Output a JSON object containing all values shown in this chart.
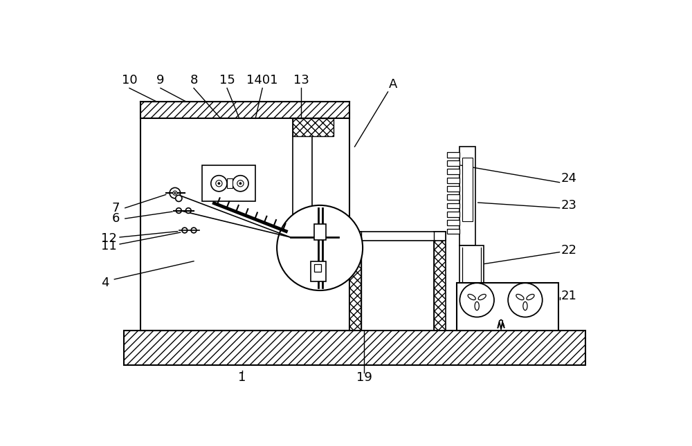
{
  "bg": "#ffffff",
  "lc": "#000000",
  "lw": 1.2,
  "label_fs": 13,
  "fig_w": 10.0,
  "fig_h": 6.45
}
